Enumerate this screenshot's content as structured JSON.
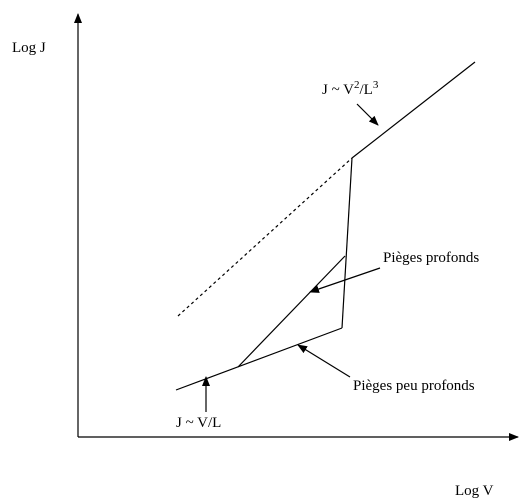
{
  "axes": {
    "y_label": "Log J",
    "x_label": "Log V"
  },
  "annotations": {
    "upper": {
      "parts": [
        "J ~ V",
        "2",
        "/L",
        "3"
      ]
    },
    "deep": {
      "text": "Pièges profonds"
    },
    "shallow": {
      "text": "Pièges peu profonds"
    },
    "ohmic": {
      "text": "J ~ V/L"
    }
  }
}
